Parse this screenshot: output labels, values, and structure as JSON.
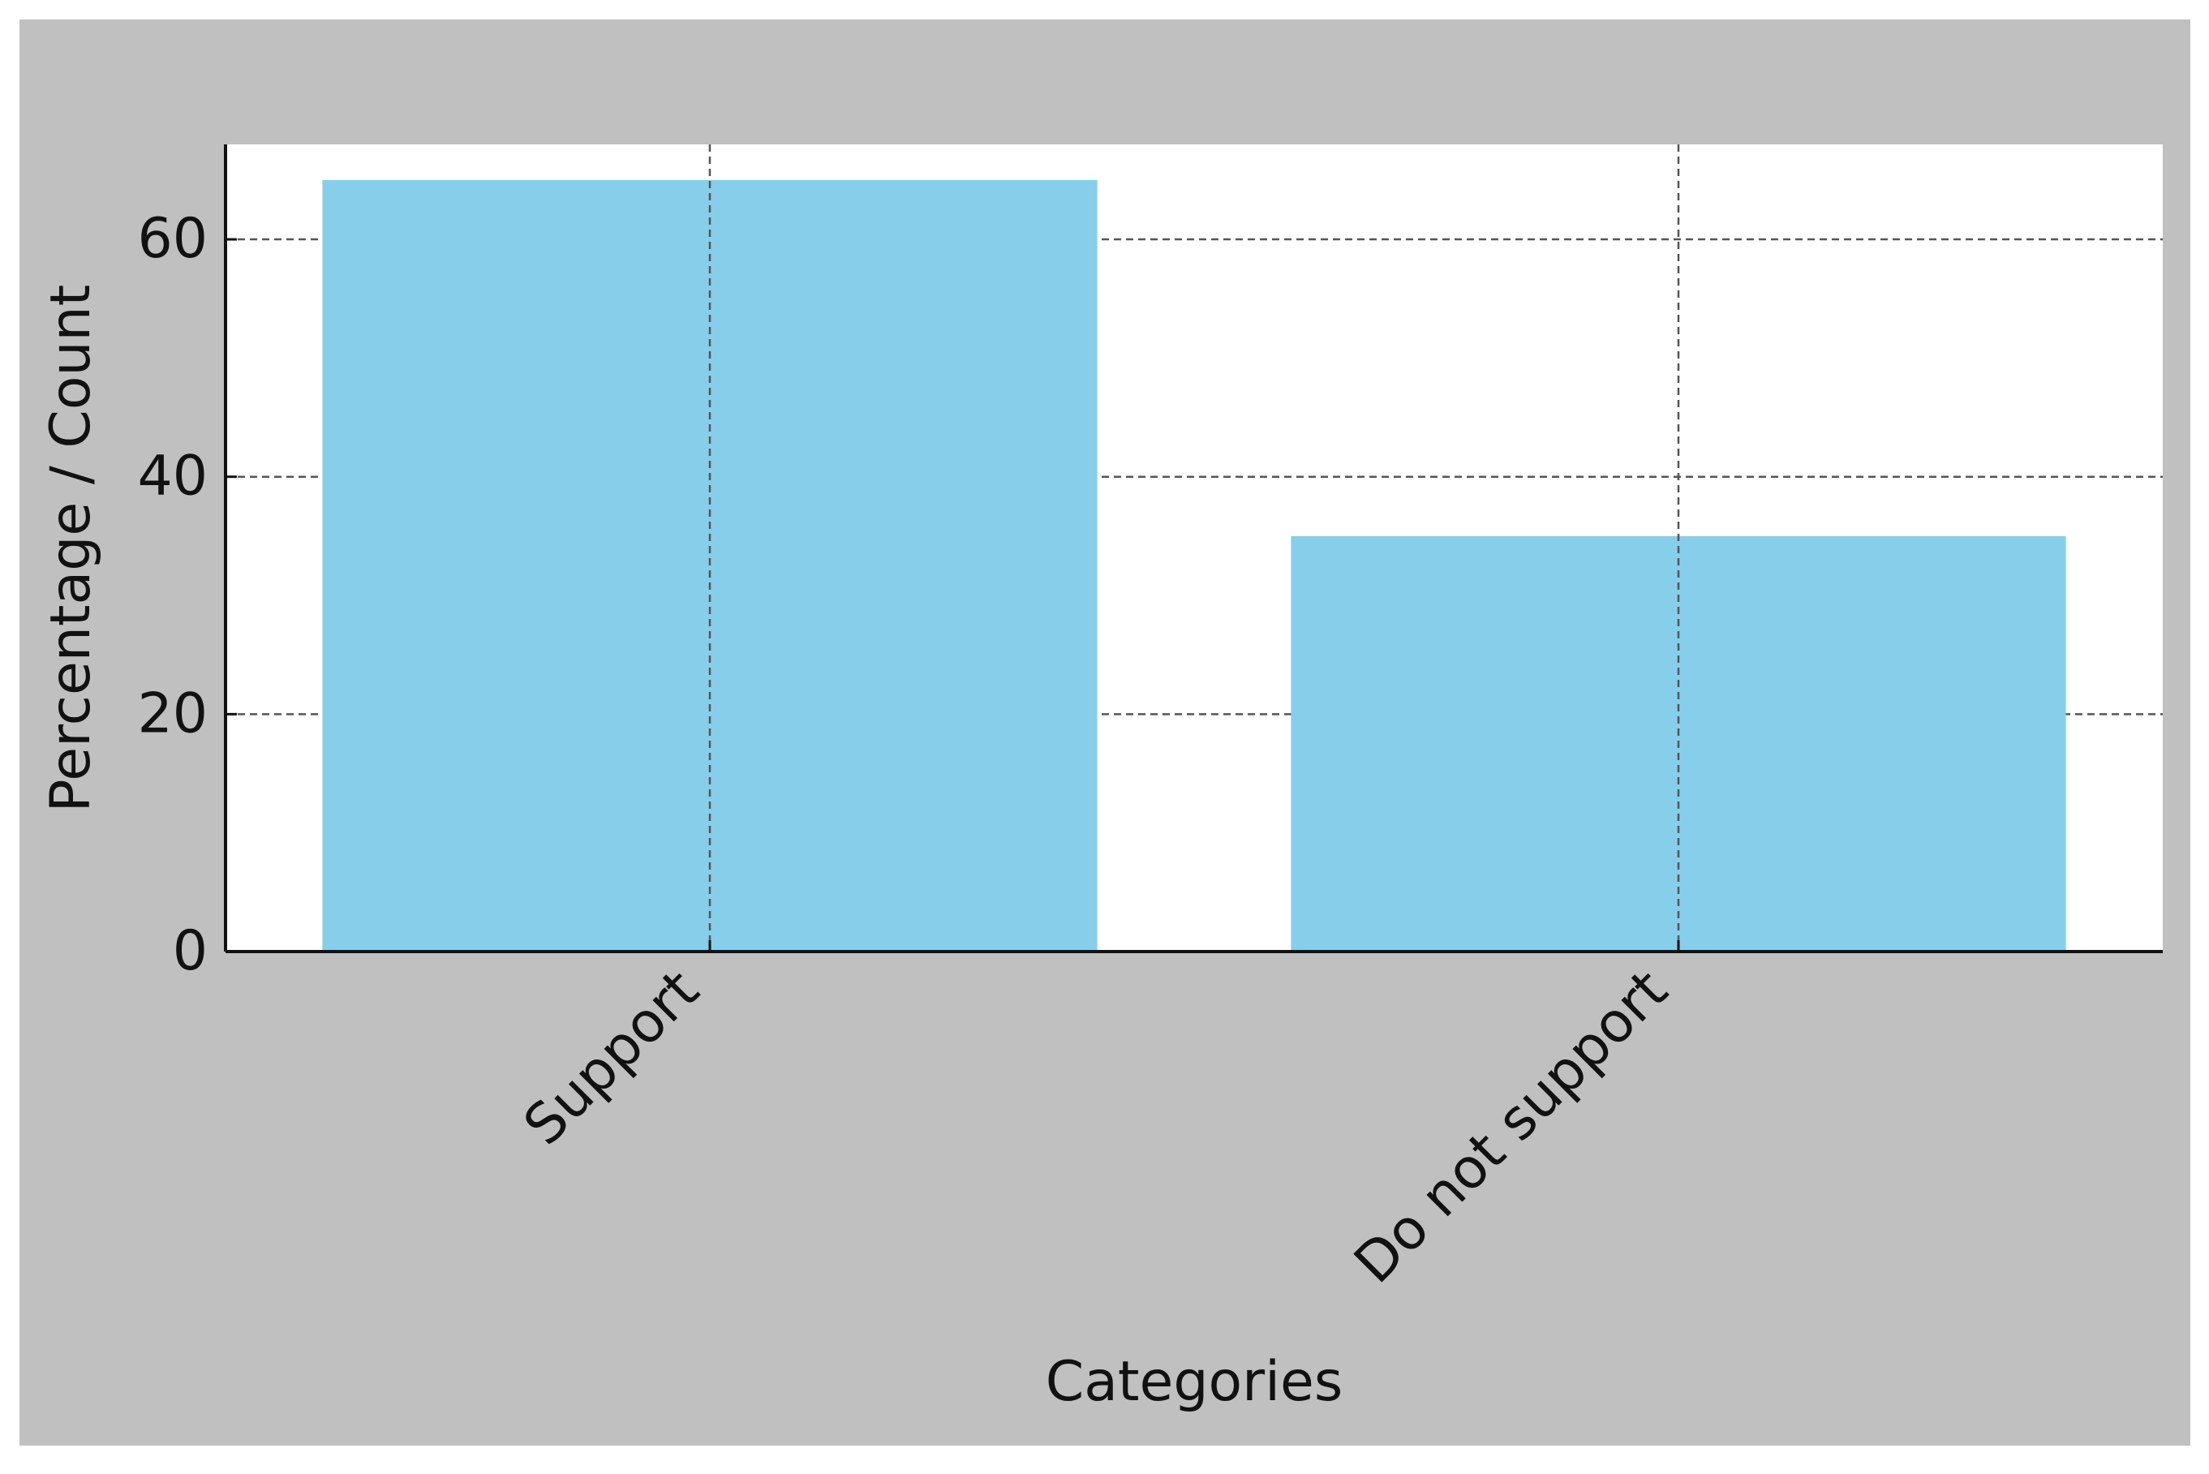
{
  "chart_data": {
    "type": "bar",
    "title": "",
    "xlabel": "Categories",
    "ylabel": "Percentage / Count",
    "categories": [
      "Support",
      "Do not support"
    ],
    "values": [
      65,
      35
    ],
    "ylim": [
      0,
      68
    ],
    "yticks": [
      0,
      20,
      40,
      60
    ],
    "grid": true,
    "legend": "none",
    "colors": {
      "bar": "#87CEEB",
      "figure_background": "#C0C0C0",
      "plot_background": "#FFFFFF",
      "grid": "#555555",
      "axis": "#111111"
    }
  }
}
